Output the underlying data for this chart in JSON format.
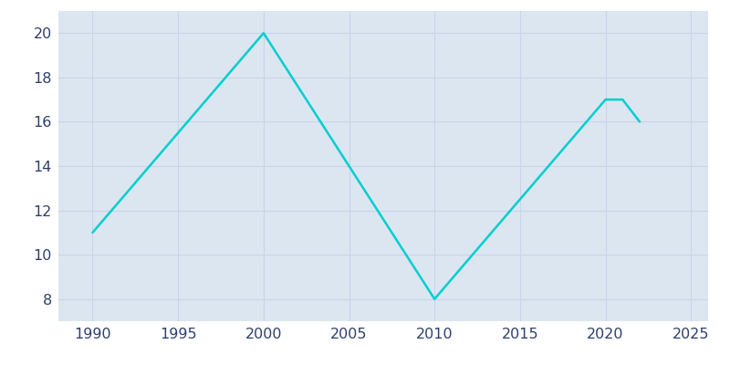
{
  "years": [
    1990,
    2000,
    2010,
    2020,
    2021,
    2022
  ],
  "population": [
    11,
    20,
    8,
    17,
    17,
    16
  ],
  "line_color": "#00CED1",
  "axes_background_color": "#dce6f1",
  "figure_background_color": "#ffffff",
  "grid_color": "#c8d4e8",
  "xlim": [
    1988,
    2026
  ],
  "ylim": [
    7,
    21
  ],
  "xticks": [
    1990,
    1995,
    2000,
    2005,
    2010,
    2015,
    2020,
    2025
  ],
  "yticks": [
    8,
    10,
    12,
    14,
    16,
    18,
    20
  ],
  "line_width": 1.8,
  "tick_label_color": "#2e3f6e",
  "tick_label_fontsize": 11.5
}
